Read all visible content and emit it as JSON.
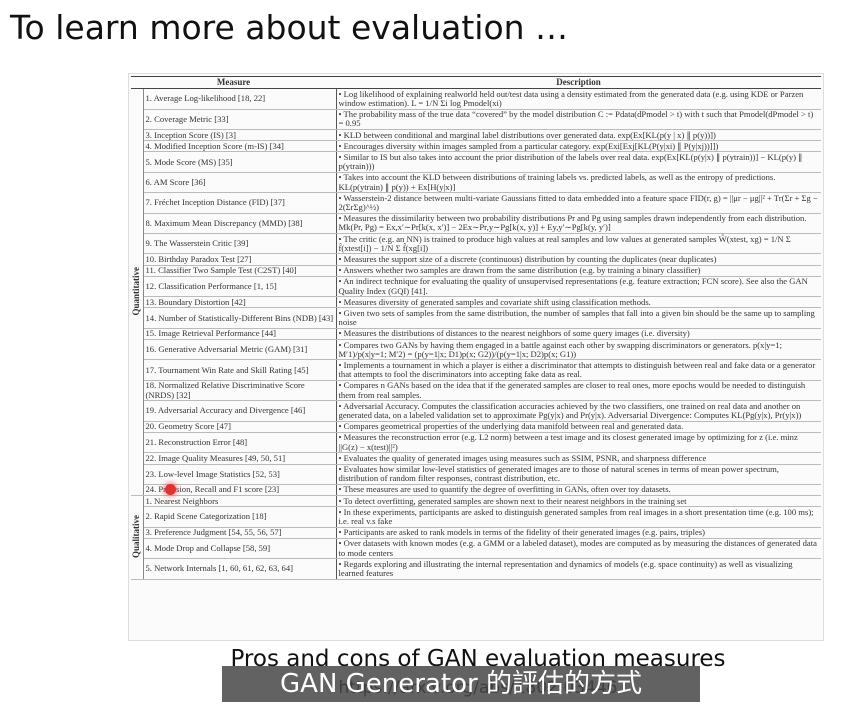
{
  "title": "To learn more about evaluation …",
  "table": {
    "headers": [
      "Measure",
      "Description"
    ],
    "groups": [
      {
        "label": "Quantitative",
        "rows": [
          [
            "1. Average Log-likelihood [18, 22]",
            "• Log likelihood of explaining realworld held out/test data using a density estimated from the generated data (e.g. using KDE or Parzen window estimation). L = 1/N Σi log Pmodel(xi)"
          ],
          [
            "2. Coverage Metric [33]",
            "• The probability mass of the true data “covered” by the model distribution C := Pdata(dPmodel > t) with t such that Pmodel(dPmodel > t) = 0.95"
          ],
          [
            "3. Inception Score (IS) [3]",
            "• KLD between conditional and marginal label distributions over generated data. exp(Ex[KL(p(y | x) ∥ p(y))])"
          ],
          [
            "4. Modified Inception Score (m-IS) [34]",
            "• Encourages diversity within images sampled from a particular category. exp(Exi[Exj[KL(P(y|xi) ∥ P(y|xj))]])"
          ],
          [
            "5. Mode Score (MS) [35]",
            "• Similar to IS but also takes into account the prior distribution of the labels over real data. exp(Ex[KL(p(y|x) ∥ p(ytrain))] − KL(p(y) ∥ p(ytrain)))"
          ],
          [
            "6. AM Score [36]",
            "• Takes into account the KLD between distributions of training labels vs. predicted labels, as well as the entropy of predictions. KL(p(ytrain) ∥ p(y)) + Ex[H(y|x)]"
          ],
          [
            "7. Fréchet Inception Distance (FID) [37]",
            "• Wasserstein-2 distance between multi-variate Gaussians fitted to data embedded into a feature space FID(r, g) = ||μr − μg||² + Tr(Σr + Σg − 2(ΣrΣg)^½)"
          ],
          [
            "8. Maximum Mean Discrepancy (MMD) [38]",
            "• Measures the dissimilarity between two probability distributions Pr and Pg using samples drawn independently from each distribution. Mk(Pr, Pg) = Ex,x′∼Pr[k(x, x′)] − 2Ex∼Pr,y∼Pg[k(x, y)] + Ey,y′∼Pg[k(y, y′)]"
          ],
          [
            "9. The Wasserstein Critic [39]",
            "• The critic (e.g. an NN) is trained to produce high values at real samples and low values at generated samples Ŵ(xtest, xg) = 1/N Σ f̂(xtest[i]) − 1/N Σ f̂(xg[i])"
          ],
          [
            "10. Birthday Paradox Test [27]",
            "• Measures the support size of a discrete (continuous) distribution by counting the duplicates (near duplicates)"
          ],
          [
            "11. Classifier Two Sample Test (C2ST) [40]",
            "• Answers whether two samples are drawn from the same distribution (e.g. by training a binary classifier)"
          ],
          [
            "12. Classification Performance [1, 15]",
            "• An indirect technique for evaluating the quality of unsupervised representations (e.g. feature extraction; FCN score). See also the GAN Quality Index (GQI) [41]."
          ],
          [
            "13. Boundary Distortion [42]",
            "• Measures diversity of generated samples and covariate shift using classification methods."
          ],
          [
            "14. Number of Statistically-Different Bins (NDB) [43]",
            "• Given two sets of samples from the same distribution, the number of samples that fall into a given bin should be the same up to sampling noise"
          ],
          [
            "15. Image Retrieval Performance [44]",
            "• Measures the distributions of distances to the nearest neighbors of some query images (i.e. diversity)"
          ],
          [
            "16. Generative Adversarial Metric (GAM) [31]",
            "• Compares two GANs by having them engaged in a battle against each other by swapping discriminators or generators. p(x|y=1; M′1)/p(x|y=1; M′2) = (p(y=1|x; D1)p(x; G2))/(p(y=1|x; D2)p(x; G1))"
          ],
          [
            "17. Tournament Win Rate and Skill Rating [45]",
            "• Implements a tournament in which a player is either a discriminator that attempts to distinguish between real and fake data or a generator that attempts to fool the discriminators into accepting fake data as real."
          ],
          [
            "18. Normalized Relative Discriminative Score (NRDS) [32]",
            "• Compares n GANs based on the idea that if the generated samples are closer to real ones, more epochs would be needed to distinguish them from real samples."
          ],
          [
            "19. Adversarial Accuracy and Divergence [46]",
            "• Adversarial Accuracy. Computes the classification accuracies achieved by the two classifiers, one trained on real data and another on generated data, on a labeled validation set to approximate Pg(y|x) and Pr(y|x). Adversarial Divergence: Computes KL(Pg(y|x), Pr(y|x))"
          ],
          [
            "20. Geometry Score [47]",
            "• Compares geometrical properties of the underlying data manifold between real and generated data."
          ],
          [
            "21. Reconstruction Error [48]",
            "• Measures the reconstruction error (e.g. L2 norm) between a test image and its closest generated image by optimizing for z (i.e. minz ||G(z) − x(test)||²)"
          ],
          [
            "22. Image Quality Measures [49, 50, 51]",
            "• Evaluates the quality of generated images using measures such as SSIM, PSNR, and sharpness difference"
          ],
          [
            "23. Low-level Image Statistics [52, 53]",
            "• Evaluates how similar low-level statistics of generated images are to those of natural scenes in terms of mean power spectrum, distribution of random filter responses, contrast distribution, etc."
          ],
          [
            "24. Precision, Recall and F1 score [23]",
            "• These measures are used to quantify the degree of overfitting in GANs, often over toy datasets."
          ]
        ]
      },
      {
        "label": "Qualitative",
        "rows": [
          [
            "1. Nearest Neighbors",
            "• To detect overfitting, generated samples are shown next to their nearest neighbors in the training set"
          ],
          [
            "2. Rapid Scene Categorization [18]",
            "• In these experiments, participants are asked to distinguish generated samples from real images in a short presentation time (e.g. 100 ms); i.e. real v.s fake"
          ],
          [
            "3. Preference Judgment [54, 55, 56, 57]",
            "• Participants are asked to rank models in terms of the fidelity of their generated images (e.g. pairs, triples)"
          ],
          [
            "4. Mode Drop and Collapse [58, 59]",
            "• Over datasets with known modes (e.g. a GMM or a labeled dataset), modes are computed as by measuring the distances of generated data to mode centers"
          ],
          [
            "5. Network Internals [1, 60, 61, 62, 63, 64]",
            "• Regards exploring and illustrating the internal representation and dynamics of models (e.g. space continuity) as well as visualizing learned features"
          ]
        ]
      }
    ]
  },
  "caption": "Pros and cons of GAN evaluation measures",
  "url": "https://arxiv.org/abs/1802.03446",
  "subtitle": "GAN Generator 的評估的方式"
}
